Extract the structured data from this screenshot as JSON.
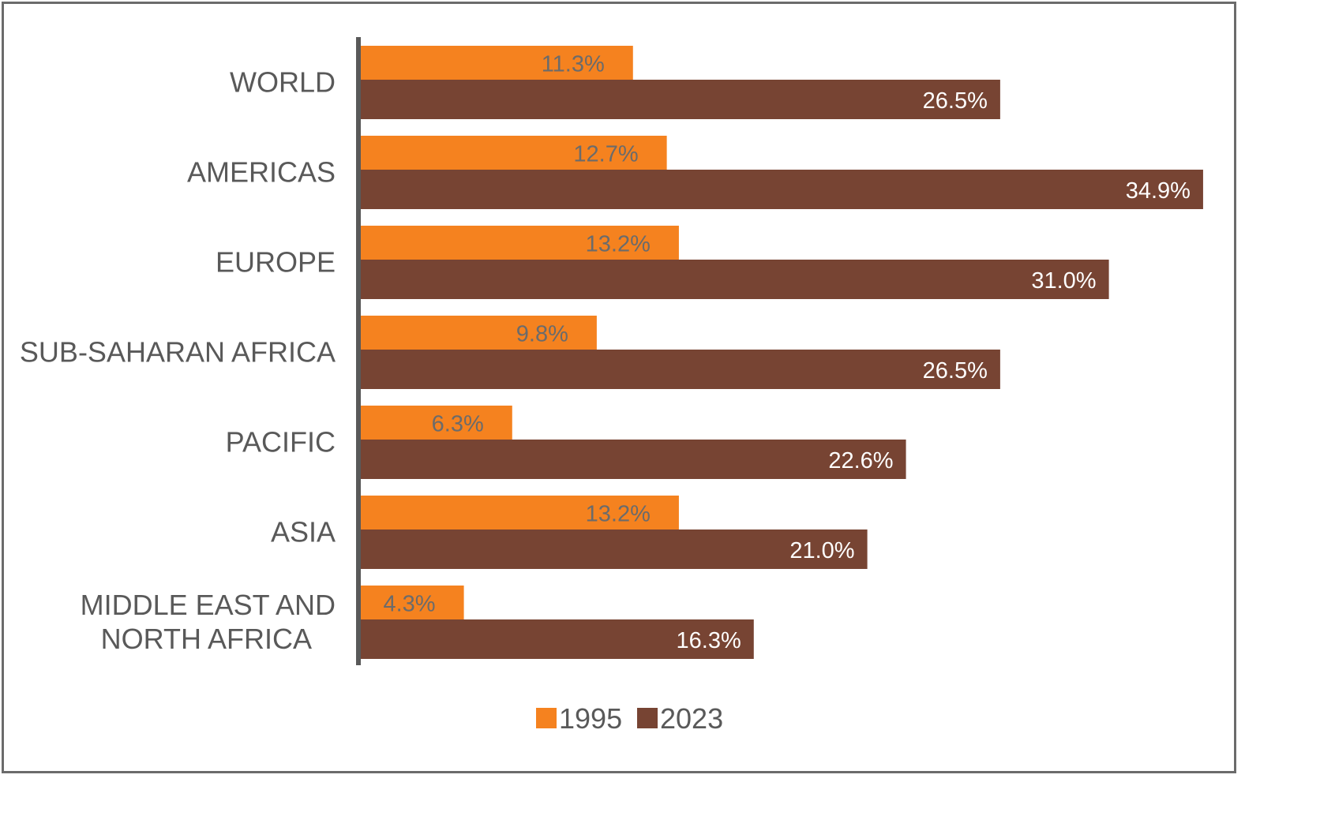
{
  "chart_data": {
    "type": "bar",
    "orientation": "horizontal",
    "categories": [
      "WORLD",
      "AMERICAS",
      "EUROPE",
      "SUB-SAHARAN AFRICA",
      "PACIFIC",
      "ASIA",
      "MIDDLE EAST AND NORTH AFRICA"
    ],
    "category_lines": [
      [
        "WORLD"
      ],
      [
        "AMERICAS"
      ],
      [
        "EUROPE"
      ],
      [
        "SUB-SAHARAN AFRICA"
      ],
      [
        "PACIFIC"
      ],
      [
        "ASIA"
      ],
      [
        "MIDDLE EAST AND",
        "NORTH AFRICA"
      ]
    ],
    "series": [
      {
        "name": "1995",
        "color": "#F5821F",
        "values": [
          11.3,
          12.7,
          13.2,
          9.8,
          6.3,
          13.2,
          4.3
        ],
        "labels": [
          "11.3%",
          "12.7%",
          "13.2%",
          "9.8%",
          "6.3%",
          "13.2%",
          "4.3%"
        ]
      },
      {
        "name": "2023",
        "color": "#774433",
        "values": [
          26.5,
          34.9,
          31.0,
          26.5,
          22.6,
          21.0,
          16.3
        ],
        "labels": [
          "26.5%",
          "34.9%",
          "31.0%",
          "26.5%",
          "22.6%",
          "21.0%",
          "16.3%"
        ]
      }
    ],
    "xlim": [
      0,
      35
    ],
    "grid": false,
    "legend_position": "bottom-center",
    "axis_color": "#595959",
    "frame_color": "#6b6b6b"
  }
}
